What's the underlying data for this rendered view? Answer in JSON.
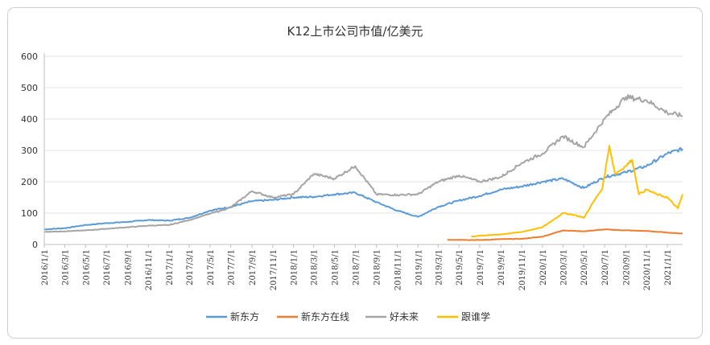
{
  "chart_data": {
    "type": "line",
    "title": "K12上市公司市值/亿美元",
    "xlabel": "",
    "ylabel": "",
    "ylim": [
      0,
      600
    ],
    "yticks": [
      0,
      100,
      200,
      300,
      400,
      500,
      600
    ],
    "x_tick_labels": [
      "2016/1/1",
      "2016/3/1",
      "2016/5/1",
      "2016/7/1",
      "2016/9/1",
      "2016/11/1",
      "2017/1/1",
      "2017/3/1",
      "2017/5/1",
      "2017/7/1",
      "2017/9/1",
      "2017/11/1",
      "2018/1/1",
      "2018/3/1",
      "2018/5/1",
      "2018/7/1",
      "2018/9/1",
      "2018/11/1",
      "2019/1/1",
      "2019/3/1",
      "2019/5/1",
      "2019/7/1",
      "2019/9/1",
      "2019/11/1",
      "2020/1/1",
      "2020/3/1",
      "2020/5/1",
      "2020/7/1",
      "2020/9/1",
      "2020/11/1",
      "2021/1/1"
    ],
    "legend_position": "bottom",
    "series": [
      {
        "name": "新东方",
        "color": "#5b9bd5",
        "x": [
          "2016/1/1",
          "2016/3/1",
          "2016/5/1",
          "2016/7/1",
          "2016/9/1",
          "2016/11/1",
          "2017/1/1",
          "2017/3/1",
          "2017/5/1",
          "2017/7/1",
          "2017/9/1",
          "2017/11/1",
          "2018/1/1",
          "2018/3/1",
          "2018/5/1",
          "2018/7/1",
          "2018/9/1",
          "2018/11/1",
          "2019/1/1",
          "2019/3/1",
          "2019/5/1",
          "2019/7/1",
          "2019/9/1",
          "2019/11/1",
          "2020/1/1",
          "2020/3/1",
          "2020/5/1",
          "2020/7/1",
          "2020/9/1",
          "2020/11/1",
          "2021/1/1",
          "2021/2/15"
        ],
        "values": [
          48,
          52,
          62,
          68,
          72,
          78,
          76,
          85,
          108,
          120,
          138,
          142,
          150,
          152,
          160,
          165,
          135,
          108,
          88,
          120,
          140,
          155,
          175,
          185,
          200,
          210,
          180,
          215,
          230,
          250,
          290,
          305
        ]
      },
      {
        "name": "新东方在线",
        "color": "#ed7d31",
        "x": [
          "2019/3/28",
          "2019/5/1",
          "2019/7/1",
          "2019/9/1",
          "2019/11/1",
          "2020/1/1",
          "2020/3/1",
          "2020/5/1",
          "2020/7/1",
          "2020/9/1",
          "2020/11/1",
          "2021/1/1",
          "2021/2/15"
        ],
        "values": [
          15,
          15,
          14,
          17,
          18,
          25,
          45,
          42,
          48,
          45,
          43,
          38,
          35
        ]
      },
      {
        "name": "好未来",
        "color": "#a5a5a5",
        "x": [
          "2016/1/1",
          "2016/3/1",
          "2016/5/1",
          "2016/7/1",
          "2016/9/1",
          "2016/11/1",
          "2017/1/1",
          "2017/3/1",
          "2017/5/1",
          "2017/7/1",
          "2017/9/1",
          "2017/11/1",
          "2018/1/1",
          "2018/3/1",
          "2018/5/1",
          "2018/7/1",
          "2018/9/1",
          "2018/11/1",
          "2019/1/1",
          "2019/3/1",
          "2019/5/1",
          "2019/7/1",
          "2019/9/1",
          "2019/11/1",
          "2020/1/1",
          "2020/3/1",
          "2020/5/1",
          "2020/7/1",
          "2020/9/1",
          "2020/11/1",
          "2021/1/1",
          "2021/2/15"
        ],
        "values": [
          40,
          42,
          45,
          50,
          55,
          60,
          62,
          78,
          98,
          118,
          170,
          150,
          160,
          225,
          210,
          250,
          160,
          158,
          160,
          200,
          220,
          200,
          215,
          260,
          290,
          345,
          310,
          400,
          470,
          460,
          420,
          410
        ]
      },
      {
        "name": "跟谁学",
        "color": "#ffc000",
        "x": [
          "2019/6/6",
          "2019/7/1",
          "2019/9/1",
          "2019/11/1",
          "2020/1/1",
          "2020/3/1",
          "2020/4/1",
          "2020/5/1",
          "2020/6/1",
          "2020/6/25",
          "2020/7/15",
          "2020/8/1",
          "2020/9/1",
          "2020/9/20",
          "2020/10/10",
          "2020/11/1",
          "2020/12/1",
          "2021/1/1",
          "2021/2/1",
          "2021/2/15"
        ],
        "values": [
          25,
          28,
          32,
          40,
          55,
          100,
          95,
          85,
          140,
          180,
          315,
          225,
          250,
          270,
          160,
          175,
          160,
          150,
          115,
          160
        ]
      }
    ]
  }
}
